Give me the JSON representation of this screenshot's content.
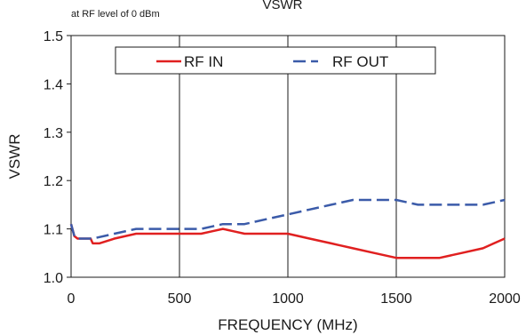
{
  "chart_data": {
    "type": "line",
    "title": "VSWR",
    "subtitle": "at RF level of 0 dBm",
    "xlabel": "FREQUENCY (MHz)",
    "ylabel": "VSWR",
    "xlim": [
      0,
      2000
    ],
    "ylim": [
      1.0,
      1.5
    ],
    "xticks": [
      "0",
      "500",
      "1000",
      "1500",
      "2000"
    ],
    "yticks": [
      "1.0",
      "1.1",
      "1.2",
      "1.3",
      "1.4",
      "1.5"
    ],
    "grid": "vertical",
    "legend_position": "top",
    "series": [
      {
        "name": "RF IN",
        "color": "#e02020",
        "dash": "solid",
        "x": [
          0,
          15,
          30,
          60,
          90,
          100,
          130,
          200,
          300,
          400,
          500,
          600,
          650,
          700,
          750,
          800,
          900,
          1000,
          1100,
          1200,
          1300,
          1400,
          1500,
          1550,
          1600,
          1700,
          1800,
          1900,
          1950,
          2000
        ],
        "y": [
          1.11,
          1.085,
          1.08,
          1.08,
          1.08,
          1.07,
          1.07,
          1.08,
          1.09,
          1.09,
          1.09,
          1.09,
          1.095,
          1.1,
          1.095,
          1.09,
          1.09,
          1.09,
          1.08,
          1.07,
          1.06,
          1.05,
          1.04,
          1.04,
          1.04,
          1.04,
          1.05,
          1.06,
          1.07,
          1.08
        ]
      },
      {
        "name": "RF OUT",
        "color": "#3b5ba9",
        "dash": "dashed",
        "x": [
          0,
          15,
          30,
          60,
          100,
          200,
          300,
          400,
          500,
          600,
          700,
          800,
          900,
          1000,
          1100,
          1200,
          1300,
          1400,
          1500,
          1550,
          1600,
          1700,
          1800,
          1900,
          2000
        ],
        "y": [
          1.11,
          1.085,
          1.08,
          1.08,
          1.08,
          1.09,
          1.1,
          1.1,
          1.1,
          1.1,
          1.11,
          1.11,
          1.12,
          1.13,
          1.14,
          1.15,
          1.16,
          1.16,
          1.16,
          1.155,
          1.15,
          1.15,
          1.15,
          1.15,
          1.16
        ]
      }
    ]
  }
}
